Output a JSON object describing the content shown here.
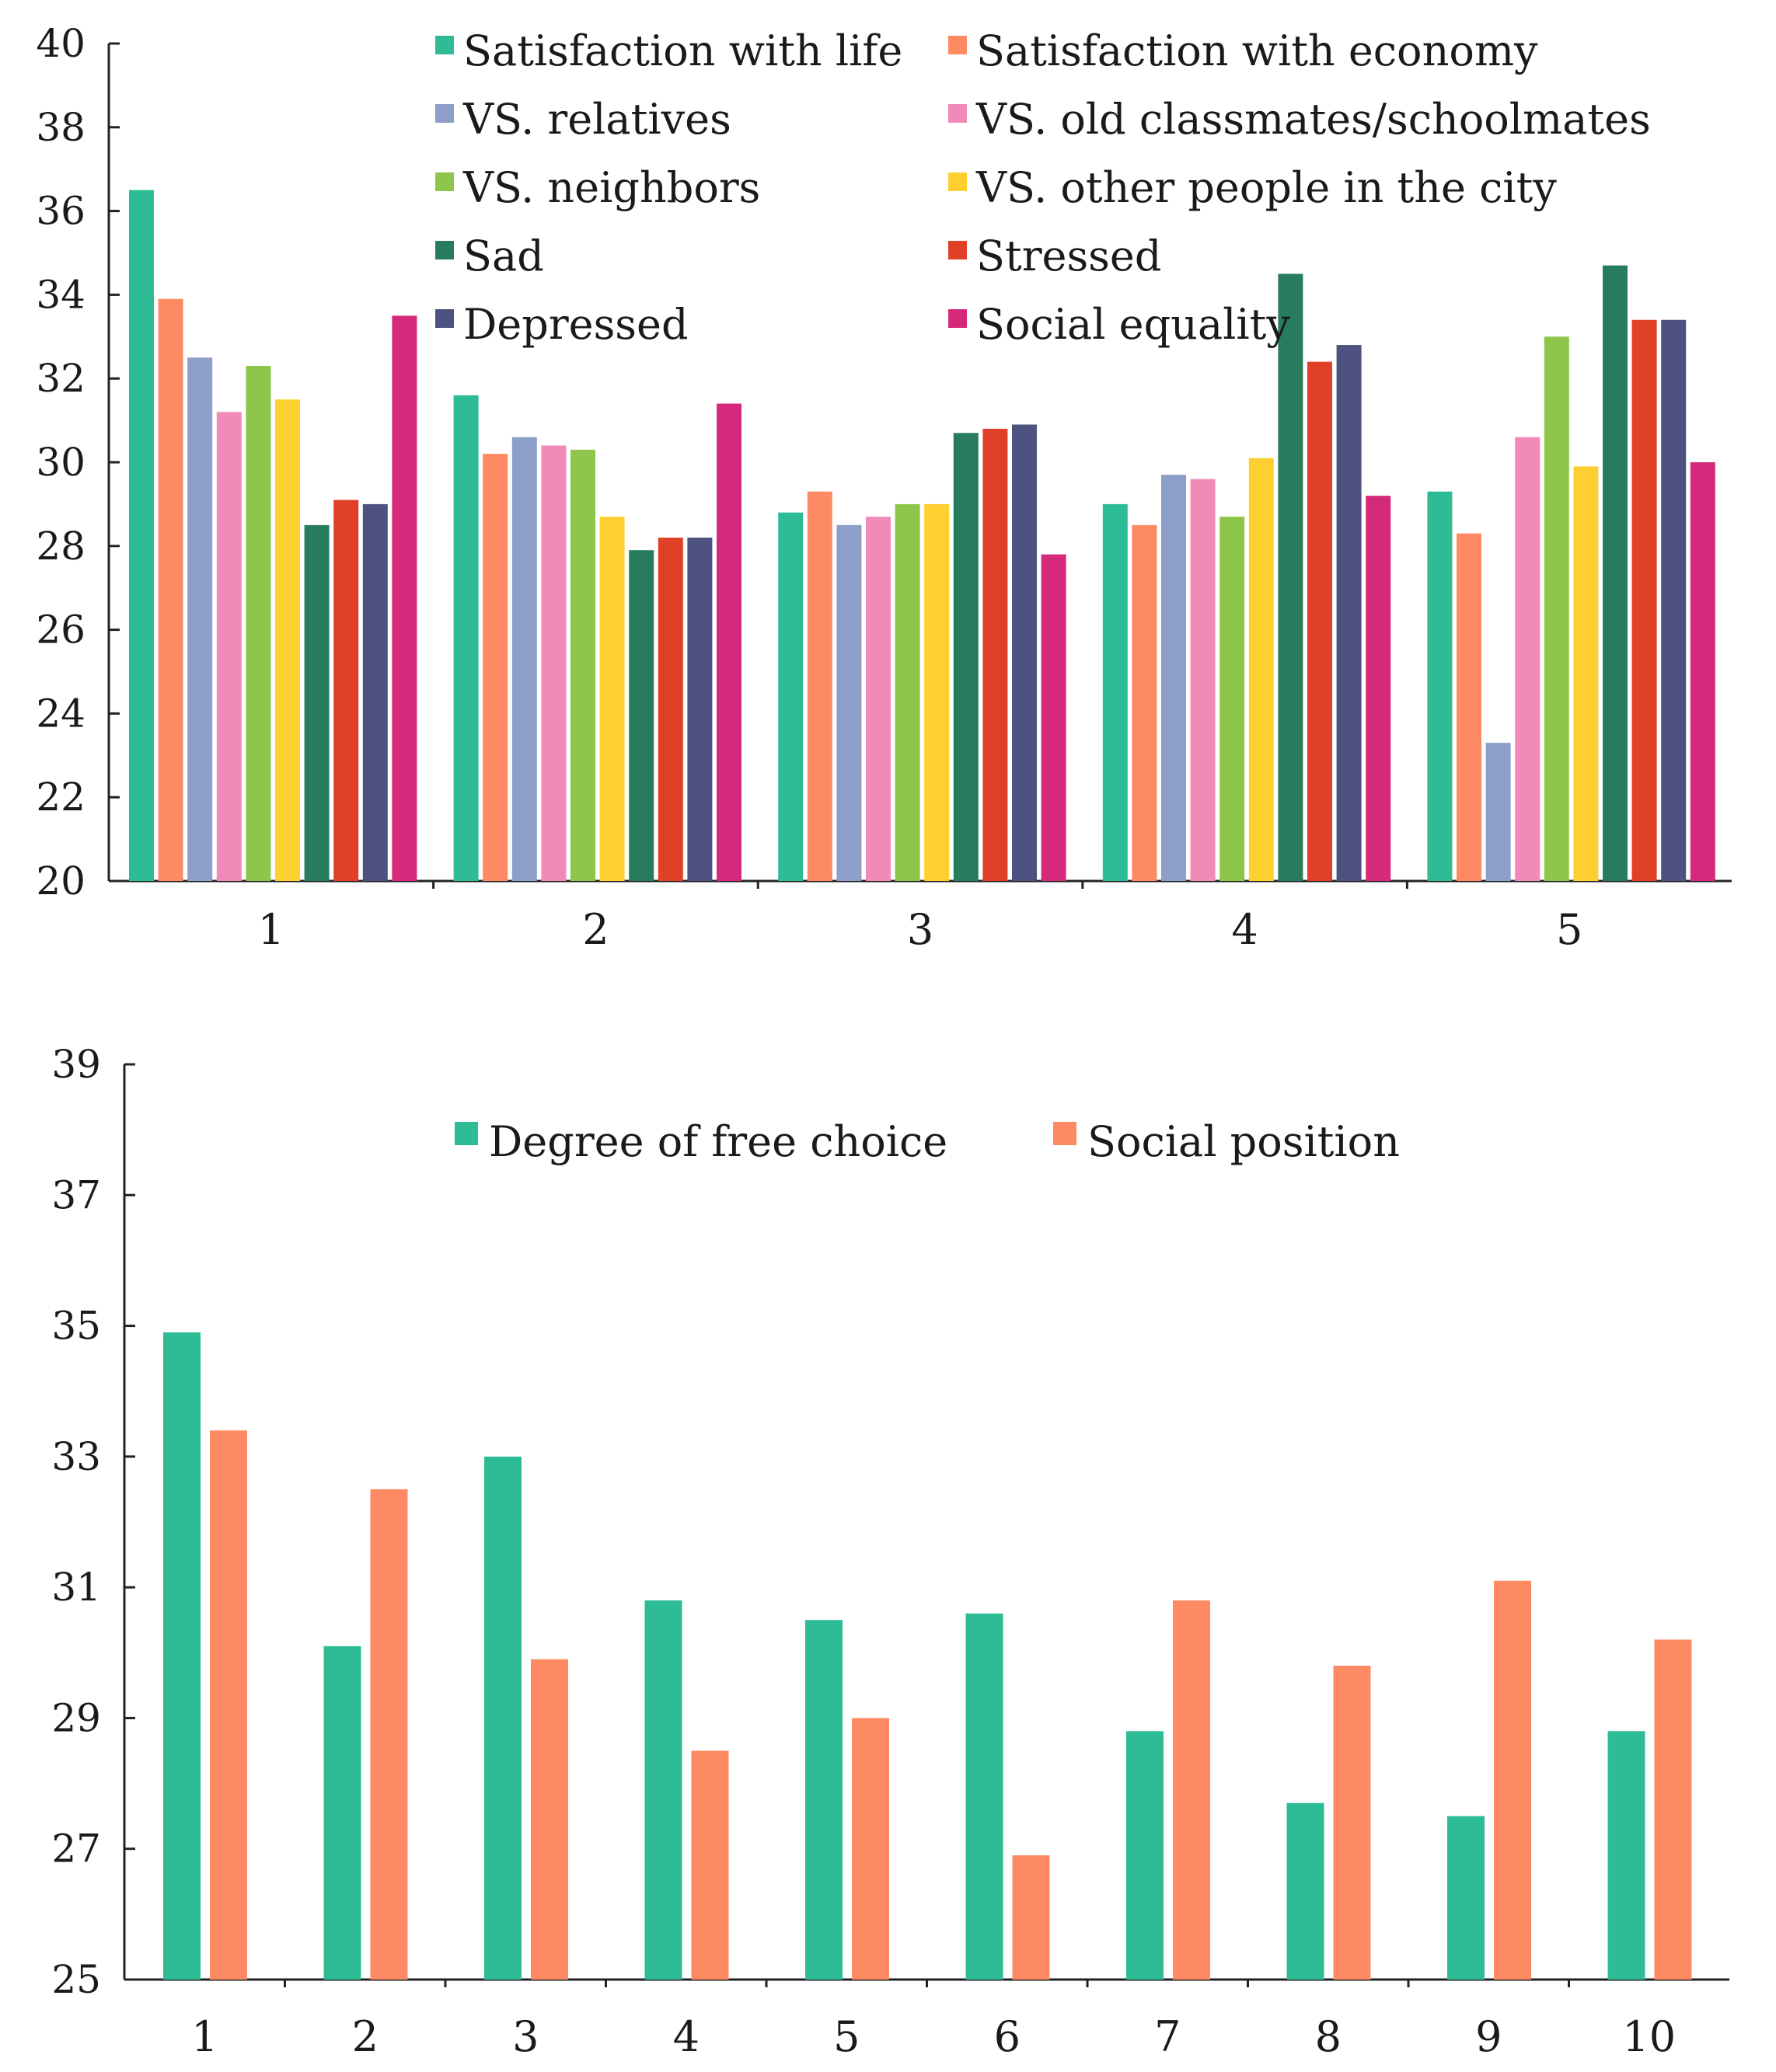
{
  "figure_title": "",
  "chart_data": [
    {
      "type": "bar",
      "title": "",
      "xlabel": "",
      "ylabel": "",
      "ylim": [
        20,
        40
      ],
      "yticks": [
        20,
        22,
        24,
        26,
        28,
        30,
        32,
        34,
        36,
        38,
        40
      ],
      "categories": [
        "1",
        "2",
        "3",
        "4",
        "5"
      ],
      "legend_position": "top",
      "series": [
        {
          "name": "Satisfaction with life",
          "color": "#2ebc96",
          "values": [
            36.5,
            31.6,
            28.8,
            29.0,
            29.3
          ]
        },
        {
          "name": "Satisfaction with economy",
          "color": "#fd8a62",
          "values": [
            33.9,
            30.2,
            29.3,
            28.5,
            28.3
          ]
        },
        {
          "name": "VS. relatives",
          "color": "#8d9ec8",
          "values": [
            32.5,
            30.6,
            28.5,
            29.7,
            23.3
          ]
        },
        {
          "name": "VS. old classmates/schoolmates",
          "color": "#f18ab9",
          "values": [
            31.2,
            30.4,
            28.7,
            29.6,
            30.6
          ]
        },
        {
          "name": "VS. neighbors",
          "color": "#8ec64b",
          "values": [
            32.3,
            30.3,
            29.0,
            28.7,
            33.0
          ]
        },
        {
          "name": "VS. other people in the city",
          "color": "#fdcf31",
          "values": [
            31.5,
            28.7,
            29.0,
            30.1,
            29.9
          ]
        },
        {
          "name": "Sad",
          "color": "#287c5e",
          "values": [
            28.5,
            27.9,
            30.7,
            34.5,
            34.7
          ]
        },
        {
          "name": "Stressed",
          "color": "#df4027",
          "values": [
            29.1,
            28.2,
            30.8,
            32.4,
            33.4
          ]
        },
        {
          "name": "Depressed",
          "color": "#4d5280",
          "values": [
            29.0,
            28.2,
            30.9,
            32.8,
            33.4
          ]
        },
        {
          "name": "Social equality",
          "color": "#d52a7b",
          "values": [
            33.5,
            31.4,
            27.8,
            29.2,
            30.0
          ]
        }
      ]
    },
    {
      "type": "bar",
      "title": "",
      "xlabel": "",
      "ylabel": "",
      "ylim": [
        25,
        39
      ],
      "yticks": [
        25,
        27,
        29,
        31,
        33,
        35,
        37,
        39
      ],
      "categories": [
        "1",
        "2",
        "3",
        "4",
        "5",
        "6",
        "7",
        "8",
        "9",
        "10"
      ],
      "legend_position": "top",
      "series": [
        {
          "name": "Degree of free choice",
          "color": "#2ebc96",
          "values": [
            34.9,
            30.1,
            33.0,
            30.8,
            30.5,
            30.6,
            28.8,
            27.7,
            27.5,
            28.8
          ]
        },
        {
          "name": "Social position",
          "color": "#fd8a62",
          "values": [
            33.4,
            32.5,
            29.9,
            28.5,
            29.0,
            26.9,
            30.8,
            29.8,
            31.1,
            30.2
          ]
        }
      ]
    }
  ]
}
